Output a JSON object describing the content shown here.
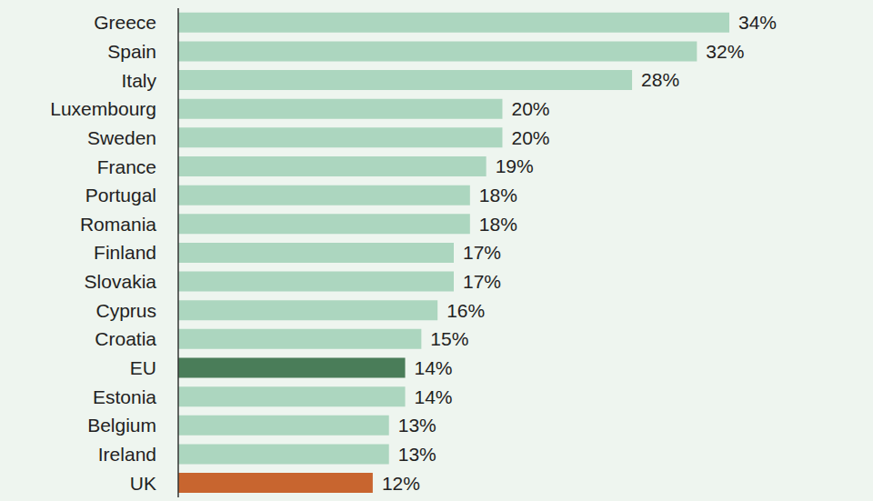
{
  "chart_data": {
    "type": "bar",
    "orientation": "horizontal",
    "categories": [
      "Greece",
      "Spain",
      "Italy",
      "Luxembourg",
      "Sweden",
      "France",
      "Portugal",
      "Romania",
      "Finland",
      "Slovakia",
      "Cyprus",
      "Croatia",
      "EU",
      "Estonia",
      "Belgium",
      "Ireland",
      "UK"
    ],
    "values": [
      34,
      32,
      28,
      20,
      20,
      19,
      18,
      18,
      17,
      17,
      16,
      15,
      14,
      14,
      13,
      13,
      12
    ],
    "value_labels": [
      "34%",
      "32%",
      "28%",
      "20%",
      "20%",
      "19%",
      "18%",
      "18%",
      "17%",
      "17%",
      "16%",
      "15%",
      "14%",
      "14%",
      "13%",
      "13%",
      "12%"
    ],
    "colors": [
      "#acd6bf",
      "#acd6bf",
      "#acd6bf",
      "#acd6bf",
      "#acd6bf",
      "#acd6bf",
      "#acd6bf",
      "#acd6bf",
      "#acd6bf",
      "#acd6bf",
      "#acd6bf",
      "#acd6bf",
      "#4a7d59",
      "#acd6bf",
      "#acd6bf",
      "#acd6bf",
      "#c8652f"
    ],
    "xlim": [
      0,
      34
    ],
    "data_labels": true,
    "tick_labels": "y",
    "grid": false
  }
}
